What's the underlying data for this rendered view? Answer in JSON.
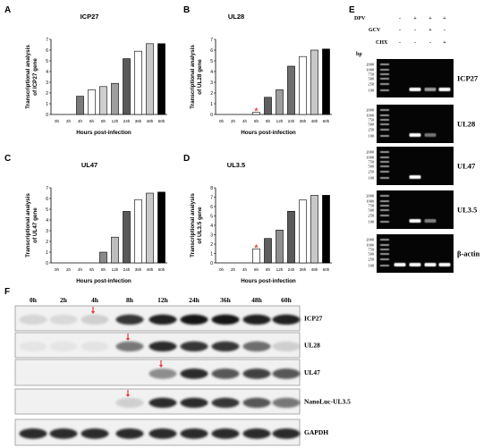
{
  "chart_data": [
    {
      "panel_letter": "A",
      "type": "bar",
      "title": "ICP27",
      "ylabel": [
        "Transcriptional analysis",
        "of ICP27 gene"
      ],
      "xlabel": "Hours post-infection",
      "categories": [
        "0h",
        "2h",
        "4h",
        "6h",
        "8h",
        "12h",
        "24h",
        "36h",
        "48h",
        "60h"
      ],
      "values": [
        0,
        0,
        1.7,
        2.3,
        2.6,
        2.9,
        5.2,
        5.9,
        6.6,
        6.6
      ],
      "ylim": [
        0,
        7
      ],
      "yticks": [
        0,
        1,
        2,
        3,
        4,
        5,
        6,
        7
      ],
      "bar_colors": [
        "#ffffff",
        "#ffffff",
        "#7a7a7a",
        "#ffffff",
        "#cfcfcf",
        "#9e9e9e",
        "#595959",
        "#ffffff",
        "#c8c8c8",
        "#000000"
      ]
    },
    {
      "panel_letter": "B",
      "type": "bar",
      "title": "UL28",
      "ylabel": [
        "Transcriptional analysis",
        "of UL28 gene"
      ],
      "xlabel": "Hours post-infection",
      "categories": [
        "0h",
        "2h",
        "4h",
        "6h",
        "8h",
        "12h",
        "24h",
        "36h",
        "48h",
        "60h"
      ],
      "values": [
        0,
        0,
        0,
        0.2,
        1.6,
        2.3,
        4.5,
        5.4,
        6.0,
        6.1
      ],
      "ylim": [
        0,
        7
      ],
      "yticks": [
        0,
        1,
        2,
        3,
        4,
        5,
        6,
        7
      ],
      "bar_colors": [
        "#ffffff",
        "#ffffff",
        "#ffffff",
        "#ffffff",
        "#5f5f5f",
        "#9e9e9e",
        "#6e6e6e",
        "#ffffff",
        "#c8c8c8",
        "#000000"
      ],
      "annotation": {
        "index": 3,
        "text": "*",
        "color": "#e53935"
      }
    },
    {
      "panel_letter": "C",
      "type": "bar",
      "title": "UL47",
      "ylabel": [
        "Transcriptional analysis",
        "of UL47 gene"
      ],
      "xlabel": "Hours post-infection",
      "categories": [
        "0h",
        "2h",
        "4h",
        "6h",
        "8h",
        "12h",
        "24h",
        "36h",
        "48h",
        "60h"
      ],
      "values": [
        0,
        0,
        0,
        0,
        1.0,
        2.4,
        4.8,
        5.9,
        6.5,
        6.6
      ],
      "ylim": [
        0,
        7
      ],
      "yticks": [
        0,
        1,
        2,
        3,
        4,
        5,
        6,
        7
      ],
      "bar_colors": [
        "#ffffff",
        "#ffffff",
        "#ffffff",
        "#ffffff",
        "#8a8a8a",
        "#bdbdbd",
        "#595959",
        "#ffffff",
        "#c8c8c8",
        "#000000"
      ]
    },
    {
      "panel_letter": "D",
      "type": "bar",
      "title": "UL3.5",
      "ylabel": [
        "Transcriptional analysis",
        "of UL3.5 gene"
      ],
      "xlabel": "Hours post-infection",
      "categories": [
        "0h",
        "2h",
        "4h",
        "6h",
        "8h",
        "12h",
        "24h",
        "36h",
        "48h",
        "60h"
      ],
      "values": [
        0,
        0,
        0,
        1.5,
        2.6,
        3.5,
        5.5,
        6.7,
        7.2,
        7.2
      ],
      "ylim": [
        0,
        8
      ],
      "yticks": [
        0,
        1,
        2,
        3,
        4,
        5,
        6,
        7,
        8
      ],
      "bar_colors": [
        "#ffffff",
        "#ffffff",
        "#ffffff",
        "#ffffff",
        "#5f5f5f",
        "#8f8f8f",
        "#595959",
        "#ffffff",
        "#c8c8c8",
        "#000000"
      ],
      "annotation": {
        "index": 3,
        "text": "*",
        "color": "#e53935"
      }
    }
  ],
  "gel": {
    "panel_letter": "E",
    "conditions": [
      {
        "name": "DPV",
        "signs": [
          "-",
          "+",
          "+",
          "+"
        ]
      },
      {
        "name": "GCV",
        "signs": [
          "-",
          "-",
          "+",
          "-"
        ]
      },
      {
        "name": "CHX",
        "signs": [
          "-",
          "-",
          "-",
          "+"
        ]
      }
    ],
    "unit": "bp",
    "ladder_labels": [
      "2000",
      "1000",
      "750",
      "500",
      "250",
      "100"
    ],
    "background_color": "#050505",
    "band_color": "#ffffff",
    "gels": [
      {
        "name": "ICP27",
        "bands": [
          0,
          1,
          0.6,
          1
        ]
      },
      {
        "name": "UL28",
        "bands": [
          0,
          1,
          0.45,
          0
        ]
      },
      {
        "name": "UL47",
        "bands": [
          0,
          1,
          0,
          0
        ]
      },
      {
        "name": "UL3.5",
        "bands": [
          0,
          1,
          0.5,
          0
        ]
      },
      {
        "name": "β-actin",
        "bands": [
          1,
          1,
          1,
          1
        ]
      }
    ]
  },
  "blot": {
    "panel_letter": "F",
    "times": [
      "0h",
      "2h",
      "4h",
      "8h",
      "12h",
      "24h",
      "36h",
      "48h",
      "60h"
    ],
    "arrow_color": "#e53935",
    "strip_color": "#f1f1f1",
    "band_color": "#151515",
    "rows": [
      {
        "name": "ICP27",
        "bands": [
          0.12,
          0.1,
          0.15,
          0.85,
          0.95,
          1,
          1,
          0.95,
          0.95
        ],
        "arrow_lane": 2
      },
      {
        "name": "UL28",
        "bands": [
          0.05,
          0.05,
          0.06,
          0.55,
          0.9,
          0.85,
          0.85,
          0.6,
          0.15
        ],
        "arrow_lane": 3
      },
      {
        "name": "UL47",
        "bands": [
          0,
          0,
          0,
          0,
          0.45,
          0.9,
          0.7,
          0.8,
          0.7
        ],
        "arrow_lane": 4
      },
      {
        "name": "NanoLuc-UL3.5",
        "bands": [
          0,
          0,
          0,
          0.15,
          0.9,
          0.9,
          0.85,
          0.7,
          0.55
        ],
        "arrow_lane": 3
      },
      {
        "name": "GAPDH",
        "bands": [
          0.9,
          0.9,
          0.9,
          0.9,
          0.9,
          0.9,
          0.9,
          0.9,
          0.9
        ]
      }
    ]
  }
}
